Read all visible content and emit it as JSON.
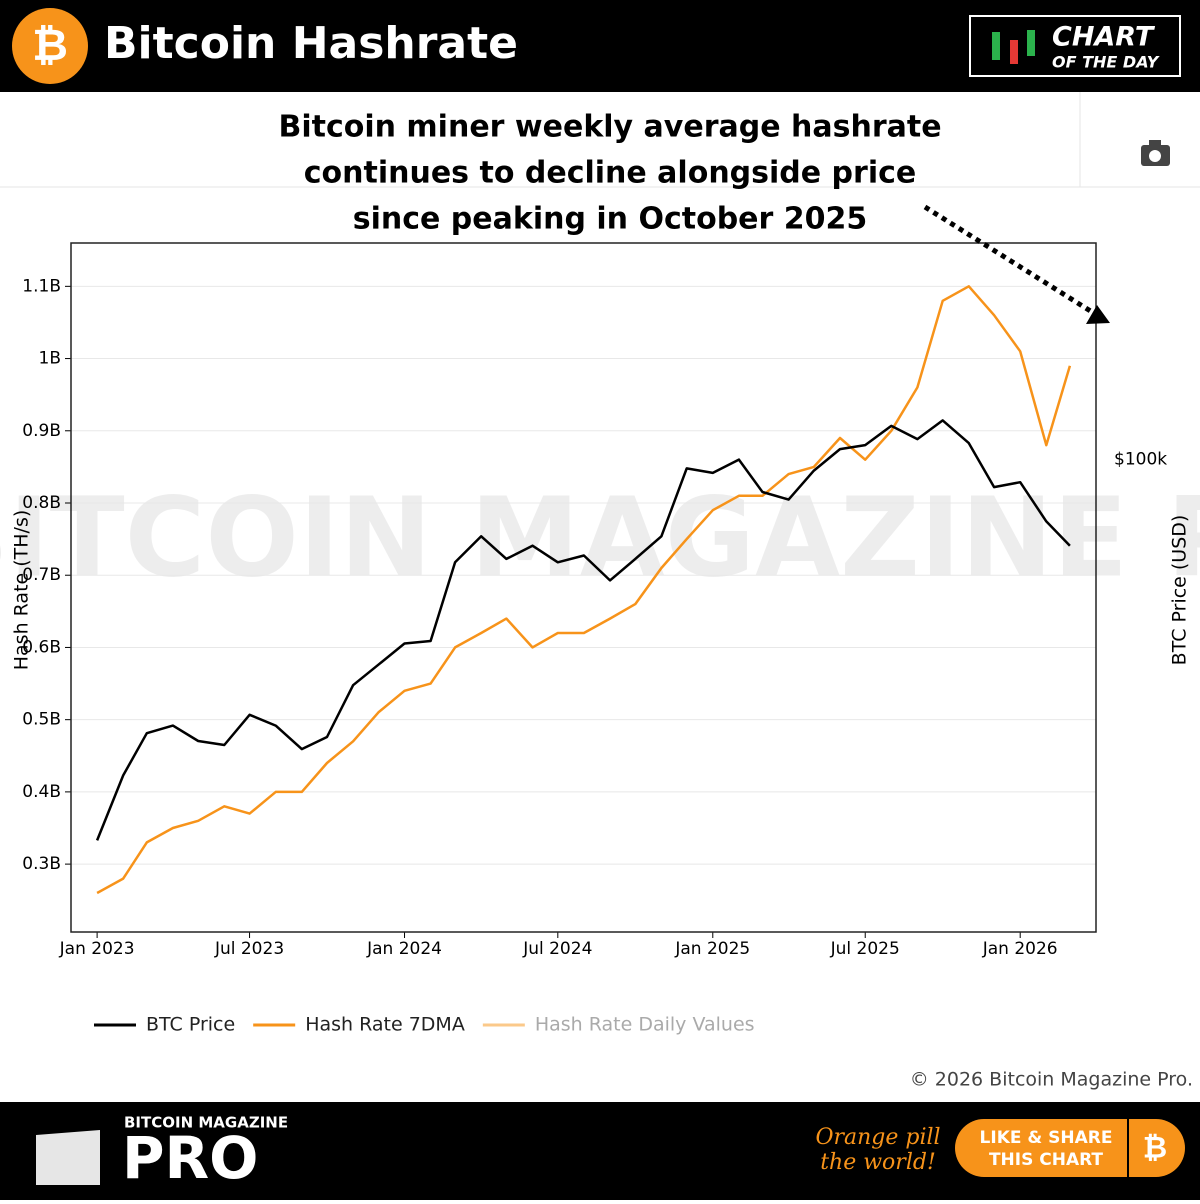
{
  "header": {
    "title": "Bitcoin Hashrate",
    "badge_top": "CHART",
    "badge_bottom": "OF THE DAY"
  },
  "chart_data": {
    "type": "line",
    "annotation": [
      "Bitcoin miner weekly average hashrate",
      "continues to decline alongside price",
      "since peaking in October 2025"
    ],
    "watermark": "BITCOIN MAGAZINE PRO",
    "ylabel": "Hash Rate (TH/s)",
    "y2label": "BTC Price (USD)",
    "x": [
      "2023-01",
      "2023-02",
      "2023-03",
      "2023-04",
      "2023-05",
      "2023-06",
      "2023-07",
      "2023-08",
      "2023-09",
      "2023-10",
      "2023-11",
      "2023-12",
      "2024-01",
      "2024-02",
      "2024-03",
      "2024-04",
      "2024-05",
      "2024-06",
      "2024-07",
      "2024-08",
      "2024-09",
      "2024-10",
      "2024-11",
      "2024-12",
      "2025-01",
      "2025-02",
      "2025-03",
      "2025-04",
      "2025-05",
      "2025-06",
      "2025-07",
      "2025-08",
      "2025-09",
      "2025-10",
      "2025-11",
      "2025-12",
      "2026-01",
      "2026-02",
      "2026-03"
    ],
    "xlim": [
      "2022-12",
      "2026-04"
    ],
    "xticks": [
      {
        "value": "2023-01",
        "label": "Jan 2023"
      },
      {
        "value": "2023-07",
        "label": "Jul 2023"
      },
      {
        "value": "2024-01",
        "label": "Jan 2024"
      },
      {
        "value": "2024-07",
        "label": "Jul 2024"
      },
      {
        "value": "2025-01",
        "label": "Jan 2025"
      },
      {
        "value": "2025-07",
        "label": "Jul 2025"
      },
      {
        "value": "2026-01",
        "label": "Jan 2026"
      }
    ],
    "ylim": [
      206000000,
      1160000000
    ],
    "yticks": [
      {
        "value": 300000000,
        "label": "0.3B"
      },
      {
        "value": 400000000,
        "label": "0.4B"
      },
      {
        "value": 500000000,
        "label": "0.5B"
      },
      {
        "value": 600000000,
        "label": "0.6B"
      },
      {
        "value": 700000000,
        "label": "0.7B"
      },
      {
        "value": 800000000,
        "label": "0.8B"
      },
      {
        "value": 900000000,
        "label": "0.9B"
      },
      {
        "value": 1000000000,
        "label": "1B"
      },
      {
        "value": 1100000000,
        "label": "1.1B"
      }
    ],
    "y2lim": [
      11100,
      274000
    ],
    "y2log": true,
    "y2ticks": [
      {
        "value": 100000,
        "label": "$100k"
      }
    ],
    "grid": true,
    "series": [
      {
        "name": "BTC Price",
        "color": "#000000",
        "axis": "y2",
        "values": [
          17000,
          23000,
          28000,
          29000,
          27000,
          26500,
          30500,
          29000,
          26000,
          27500,
          35000,
          38500,
          42500,
          43000,
          62000,
          70000,
          63000,
          67000,
          62000,
          64000,
          57000,
          63000,
          70000,
          96000,
          94000,
          100000,
          86000,
          83000,
          95000,
          105000,
          107000,
          117000,
          110000,
          120000,
          108000,
          88000,
          90000,
          75000,
          67000
        ]
      },
      {
        "name": "Hash Rate 7DMA",
        "color": "#f7931a",
        "values": [
          260000000,
          280000000,
          330000000,
          350000000,
          360000000,
          380000000,
          370000000,
          400000000,
          400000000,
          440000000,
          470000000,
          510000000,
          540000000,
          550000000,
          600000000,
          620000000,
          640000000,
          600000000,
          620000000,
          620000000,
          640000000,
          660000000,
          710000000,
          750000000,
          790000000,
          810000000,
          810000000,
          840000000,
          850000000,
          890000000,
          860000000,
          900000000,
          960000000,
          1080000000,
          1100000000,
          1060000000,
          1010000000,
          880000000,
          990000000
        ]
      }
    ],
    "hidden_series": [
      {
        "name": "Hash Rate Daily Values",
        "color": "#fbc98a"
      }
    ],
    "copyright": "© 2026 Bitcoin Magazine Pro."
  },
  "footer": {
    "brand_top": "BITCOIN MAGAZINE",
    "brand": "PRO",
    "slogan": [
      "Orange pill",
      "the world!"
    ],
    "button": [
      "LIKE & SHARE",
      "THIS CHART"
    ]
  }
}
